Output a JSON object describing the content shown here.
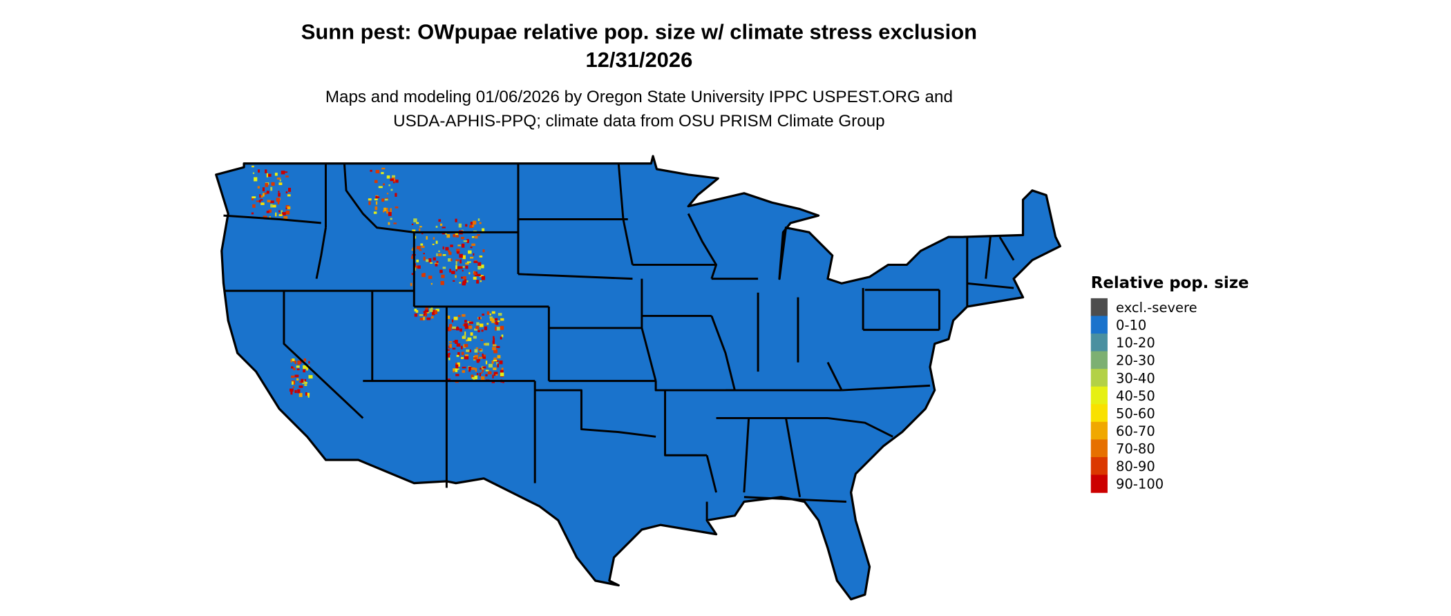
{
  "title": {
    "line1": "Sunn pest: OWpupae relative pop. size w/ climate stress exclusion",
    "line2": "12/31/2026"
  },
  "subtitle": {
    "line1": "Maps and modeling 01/06/2026 by Oregon State University IPPC USPEST.ORG and",
    "line2": "USDA-APHIS-PPQ; climate data from OSU PRISM Climate Group"
  },
  "map": {
    "region": "Contiguous United States",
    "dominant_class": "0-10",
    "hotspot_regions": [
      "Washington Cascades",
      "Idaho/Montana/Wyoming Rockies",
      "Colorado Rockies",
      "Utah Uinta",
      "California Sierra Nevada"
    ]
  },
  "legend": {
    "title": "Relative pop. size",
    "position": "right",
    "items": [
      {
        "label": "excl.-severe",
        "color": "#4d4d4d"
      },
      {
        "label": "0-10",
        "color": "#1a73cc"
      },
      {
        "label": "10-20",
        "color": "#4a90a0"
      },
      {
        "label": "20-30",
        "color": "#7db072"
      },
      {
        "label": "30-40",
        "color": "#b3d146"
      },
      {
        "label": "40-50",
        "color": "#e6f013"
      },
      {
        "label": "50-60",
        "color": "#f9e100"
      },
      {
        "label": "60-70",
        "color": "#f0a800"
      },
      {
        "label": "70-80",
        "color": "#e67000"
      },
      {
        "label": "80-90",
        "color": "#db3800"
      },
      {
        "label": "90-100",
        "color": "#cc0000"
      }
    ]
  }
}
